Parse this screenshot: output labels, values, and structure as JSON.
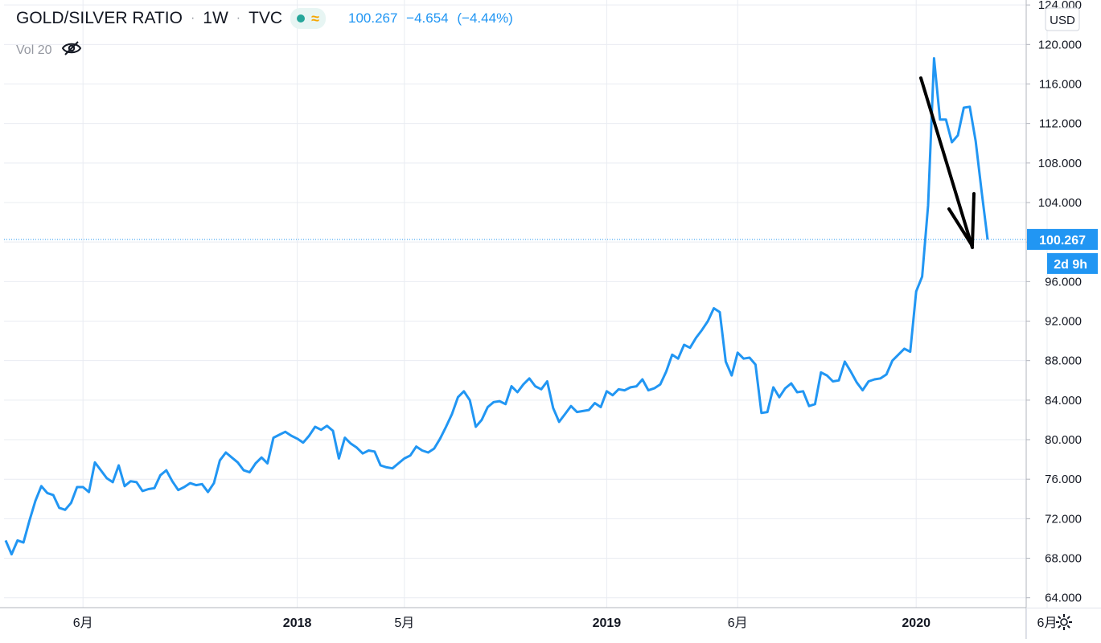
{
  "header": {
    "symbol": "GOLD/SILVER RATIO",
    "interval": "1W",
    "source": "TVC",
    "sep": "·",
    "last": "100.267",
    "change": "−4.654",
    "change_pct": "(−4.44%)"
  },
  "volume": {
    "label": "Vol 20"
  },
  "price_scale": {
    "currency": "USD",
    "last_label": "100.267",
    "countdown": "2d 9h"
  },
  "colors": {
    "line": "#2196f3",
    "grid": "#e9ecf2",
    "axis_text": "#131722",
    "price_label_bg": "#2196f3",
    "arrow": "#000000",
    "status_green": "#26a69a",
    "status_orange": "#f7a600"
  },
  "icons": [
    "eye-off-icon",
    "gear-icon",
    "market-status-dot-icon",
    "delay-wave-icon"
  ],
  "chart_data": {
    "type": "line",
    "title": "GOLD/SILVER RATIO",
    "interval": "1W",
    "ylim": [
      63,
      124.5
    ],
    "y_ticks": [
      64,
      68,
      72,
      76,
      80,
      84,
      88,
      92,
      96,
      100,
      104,
      108,
      112,
      116,
      120,
      124
    ],
    "y_tick_labels": [
      "64.000",
      "68.000",
      "72.000",
      "76.000",
      "80.000",
      "84.000",
      "88.000",
      "92.000",
      "96.000",
      null,
      "104.000",
      "108.000",
      "112.000",
      "116.000",
      "120.000",
      "124.000"
    ],
    "x_labels": [
      {
        "label": "6月",
        "week": 13
      },
      {
        "label": "2018",
        "week": 49
      },
      {
        "label": "5月",
        "week": 67
      },
      {
        "label": "2019",
        "week": 101
      },
      {
        "label": "6月",
        "week": 123
      },
      {
        "label": "2020",
        "week": 153
      },
      {
        "label": "6月",
        "week": 175
      }
    ],
    "x_label_bold": [
      "2018",
      "2019",
      "2020"
    ],
    "grid": true,
    "last_value": 100.267,
    "series": [
      {
        "values": [
          69.8,
          68.4,
          69.8,
          69.6,
          71.8,
          73.8,
          75.3,
          74.6,
          74.4,
          73.1,
          72.9,
          73.6,
          75.2,
          75.2,
          74.7,
          77.7,
          76.9,
          76.1,
          75.7,
          77.4,
          75.3,
          75.8,
          75.7,
          74.8,
          75.0,
          75.1,
          76.4,
          76.9,
          75.8,
          74.9,
          75.2,
          75.6,
          75.4,
          75.5,
          74.7,
          75.6,
          77.9,
          78.7,
          78.2,
          77.7,
          76.9,
          76.7,
          77.6,
          78.2,
          77.6,
          80.2,
          80.5,
          80.8,
          80.4,
          80.1,
          79.7,
          80.4,
          81.3,
          81.0,
          81.4,
          80.9,
          78.1,
          80.2,
          79.6,
          79.2,
          78.6,
          78.9,
          78.8,
          77.4,
          77.2,
          77.1,
          77.6,
          78.1,
          78.4,
          79.3,
          78.9,
          78.7,
          79.1,
          80.1,
          81.3,
          82.6,
          84.3,
          84.9,
          84.0,
          81.3,
          82.0,
          83.3,
          83.8,
          83.9,
          83.6,
          85.4,
          84.8,
          85.6,
          86.2,
          85.4,
          85.1,
          85.9,
          83.2,
          81.8,
          82.6,
          83.4,
          82.8,
          82.9,
          83.0,
          83.7,
          83.3,
          84.9,
          84.5,
          85.1,
          85.0,
          85.3,
          85.4,
          86.1,
          85.0,
          85.2,
          85.6,
          86.9,
          88.6,
          88.2,
          89.6,
          89.3,
          90.3,
          91.1,
          92.0,
          93.3,
          92.9,
          87.9,
          86.5,
          88.8,
          88.2,
          88.3,
          87.6,
          82.7,
          82.8,
          85.3,
          84.3,
          85.2,
          85.7,
          84.8,
          84.9,
          83.4,
          83.6,
          86.8,
          86.5,
          85.9,
          86.0,
          87.9,
          86.9,
          85.8,
          85.0,
          85.9,
          86.1,
          86.2,
          86.6,
          88.0,
          88.6,
          89.2,
          88.9,
          95.0,
          96.5,
          103.7,
          118.6,
          112.4,
          112.4,
          110.1,
          110.8,
          113.6,
          113.7,
          110.2,
          105.1,
          100.267
        ]
      }
    ]
  }
}
